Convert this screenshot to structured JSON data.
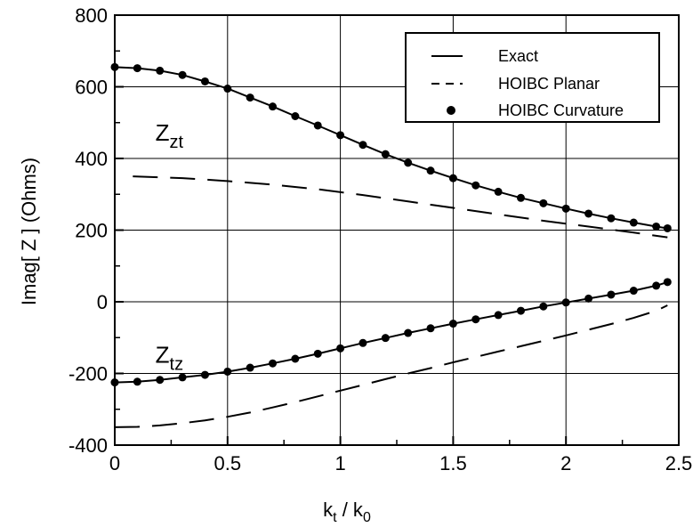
{
  "chart_data": {
    "type": "line",
    "xlabel_main": "k",
    "xlabel_sub1": "t",
    "xlabel_mid": " / k",
    "xlabel_sub2": "0",
    "ylabel": "Imag[ Z ] (Ohms)",
    "xlim": [
      0,
      2.5
    ],
    "ylim": [
      -400,
      800
    ],
    "xticks": [
      0,
      0.5,
      1,
      1.5,
      2,
      2.5
    ],
    "xtick_labels": [
      "0",
      "0.5",
      "1",
      "1.5",
      "2",
      "2.5"
    ],
    "yticks": [
      -400,
      -200,
      0,
      200,
      400,
      600,
      800
    ],
    "ytick_labels": [
      "-400",
      "-200",
      "0",
      "200",
      "400",
      "600",
      "800"
    ],
    "grid": true,
    "legend_position": "top-right",
    "legend": [
      {
        "label": "Exact",
        "style": "solid"
      },
      {
        "label": "HOIBC Planar",
        "style": "dashed"
      },
      {
        "label": "HOIBC Curvature",
        "style": "dots"
      }
    ],
    "annotations": [
      {
        "main": "Z",
        "sub": "zt",
        "x": 0.18,
        "y": 450
      },
      {
        "main": "Z",
        "sub": "tz",
        "x": 0.18,
        "y": -170
      }
    ],
    "series": [
      {
        "name": "Exact",
        "group": "Zzt",
        "style": "solid",
        "x": [
          0,
          0.1,
          0.2,
          0.3,
          0.4,
          0.5,
          0.6,
          0.7,
          0.8,
          0.9,
          1.0,
          1.1,
          1.2,
          1.3,
          1.4,
          1.5,
          1.6,
          1.7,
          1.8,
          1.9,
          2.0,
          2.1,
          2.2,
          2.3,
          2.4,
          2.45
        ],
        "y": [
          655,
          652,
          645,
          633,
          615,
          595,
          570,
          545,
          518,
          492,
          465,
          438,
          412,
          388,
          366,
          345,
          325,
          307,
          290,
          275,
          260,
          246,
          233,
          221,
          210,
          205
        ]
      },
      {
        "name": "Exact",
        "group": "Ztz",
        "style": "solid",
        "x": [
          0,
          0.1,
          0.2,
          0.3,
          0.4,
          0.5,
          0.6,
          0.7,
          0.8,
          0.9,
          1.0,
          1.1,
          1.2,
          1.3,
          1.4,
          1.5,
          1.6,
          1.7,
          1.8,
          1.9,
          2.0,
          2.1,
          2.2,
          2.3,
          2.4,
          2.45
        ],
        "y": [
          -225,
          -223,
          -218,
          -211,
          -204,
          -195,
          -184,
          -172,
          -159,
          -145,
          -130,
          -115,
          -101,
          -87,
          -74,
          -61,
          -49,
          -37,
          -25,
          -13,
          -2,
          9,
          20,
          31,
          45,
          55
        ]
      },
      {
        "name": "HOIBC Planar",
        "group": "Zzt",
        "style": "dashed",
        "x": [
          0.08,
          0.3,
          0.5,
          0.7,
          0.9,
          1.1,
          1.3,
          1.5,
          1.7,
          1.9,
          2.1,
          2.3,
          2.45
        ],
        "y": [
          350,
          345,
          337,
          327,
          314,
          298,
          280,
          262,
          244,
          226,
          210,
          193,
          180
        ]
      },
      {
        "name": "HOIBC Planar",
        "group": "Ztz",
        "style": "dashed",
        "x": [
          0,
          0.1,
          0.2,
          0.3,
          0.4,
          0.5,
          0.6,
          0.7,
          0.8,
          0.9,
          1.0,
          1.1,
          1.2,
          1.3,
          1.4,
          1.5,
          1.6,
          1.7,
          1.8,
          1.9,
          2.0,
          2.1,
          2.2,
          2.3,
          2.4,
          2.45
        ],
        "y": [
          -350,
          -349,
          -345,
          -339,
          -331,
          -321,
          -309,
          -295,
          -280,
          -264,
          -248,
          -232,
          -216,
          -200,
          -185,
          -169,
          -154,
          -139,
          -124,
          -109,
          -94,
          -78,
          -62,
          -45,
          -25,
          -10
        ]
      },
      {
        "name": "HOIBC Curvature",
        "group": "Zzt",
        "style": "dots",
        "x": [
          0,
          0.1,
          0.2,
          0.3,
          0.4,
          0.5,
          0.6,
          0.7,
          0.8,
          0.9,
          1.0,
          1.1,
          1.2,
          1.3,
          1.4,
          1.5,
          1.6,
          1.7,
          1.8,
          1.9,
          2.0,
          2.1,
          2.2,
          2.3,
          2.4,
          2.45
        ],
        "y": [
          655,
          652,
          645,
          633,
          615,
          595,
          570,
          545,
          518,
          492,
          465,
          438,
          412,
          388,
          366,
          345,
          325,
          307,
          290,
          275,
          260,
          246,
          233,
          221,
          210,
          205
        ]
      },
      {
        "name": "HOIBC Curvature",
        "group": "Ztz",
        "style": "dots",
        "x": [
          0,
          0.1,
          0.2,
          0.3,
          0.4,
          0.5,
          0.6,
          0.7,
          0.8,
          0.9,
          1.0,
          1.1,
          1.2,
          1.3,
          1.4,
          1.5,
          1.6,
          1.7,
          1.8,
          1.9,
          2.0,
          2.1,
          2.2,
          2.3,
          2.4,
          2.45
        ],
        "y": [
          -225,
          -223,
          -218,
          -211,
          -204,
          -195,
          -184,
          -172,
          -159,
          -145,
          -130,
          -115,
          -101,
          -87,
          -74,
          -61,
          -49,
          -37,
          -25,
          -13,
          -2,
          9,
          20,
          31,
          45,
          55
        ]
      }
    ]
  }
}
